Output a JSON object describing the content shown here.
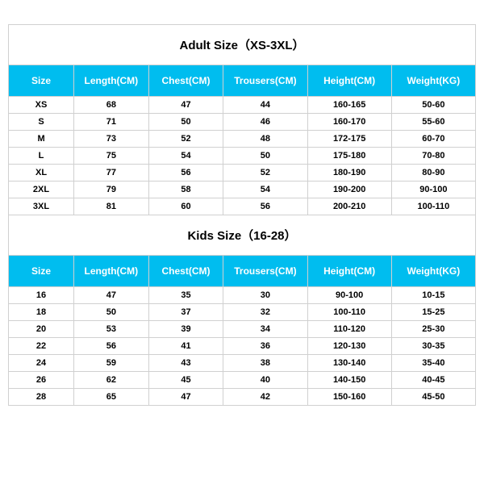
{
  "colors": {
    "header_bg": "#00bdef",
    "header_text": "#ffffff",
    "border": "#d0d0d0",
    "cell_bg": "#ffffff",
    "cell_text": "#000000"
  },
  "typography": {
    "title_fontsize": 15,
    "header_fontsize": 12,
    "cell_fontsize": 11,
    "font_family": "Arial, sans-serif"
  },
  "column_widths_pct": [
    14,
    16,
    16,
    18,
    18,
    18
  ],
  "adult": {
    "title": "Adult Size（XS-3XL）",
    "columns": [
      "Size",
      "Length(CM)",
      "Chest(CM)",
      "Trousers(CM)",
      "Height(CM)",
      "Weight(KG)"
    ],
    "rows": [
      [
        "XS",
        "68",
        "47",
        "44",
        "160-165",
        "50-60"
      ],
      [
        "S",
        "71",
        "50",
        "46",
        "160-170",
        "55-60"
      ],
      [
        "M",
        "73",
        "52",
        "48",
        "172-175",
        "60-70"
      ],
      [
        "L",
        "75",
        "54",
        "50",
        "175-180",
        "70-80"
      ],
      [
        "XL",
        "77",
        "56",
        "52",
        "180-190",
        "80-90"
      ],
      [
        "2XL",
        "79",
        "58",
        "54",
        "190-200",
        "90-100"
      ],
      [
        "3XL",
        "81",
        "60",
        "56",
        "200-210",
        "100-110"
      ]
    ]
  },
  "kids": {
    "title": "Kids Size（16-28）",
    "columns": [
      "Size",
      "Length(CM)",
      "Chest(CM)",
      "Trousers(CM)",
      "Height(CM)",
      "Weight(KG)"
    ],
    "rows": [
      [
        "16",
        "47",
        "35",
        "30",
        "90-100",
        "10-15"
      ],
      [
        "18",
        "50",
        "37",
        "32",
        "100-110",
        "15-25"
      ],
      [
        "20",
        "53",
        "39",
        "34",
        "110-120",
        "25-30"
      ],
      [
        "22",
        "56",
        "41",
        "36",
        "120-130",
        "30-35"
      ],
      [
        "24",
        "59",
        "43",
        "38",
        "130-140",
        "35-40"
      ],
      [
        "26",
        "62",
        "45",
        "40",
        "140-150",
        "40-45"
      ],
      [
        "28",
        "65",
        "47",
        "42",
        "150-160",
        "45-50"
      ]
    ]
  }
}
